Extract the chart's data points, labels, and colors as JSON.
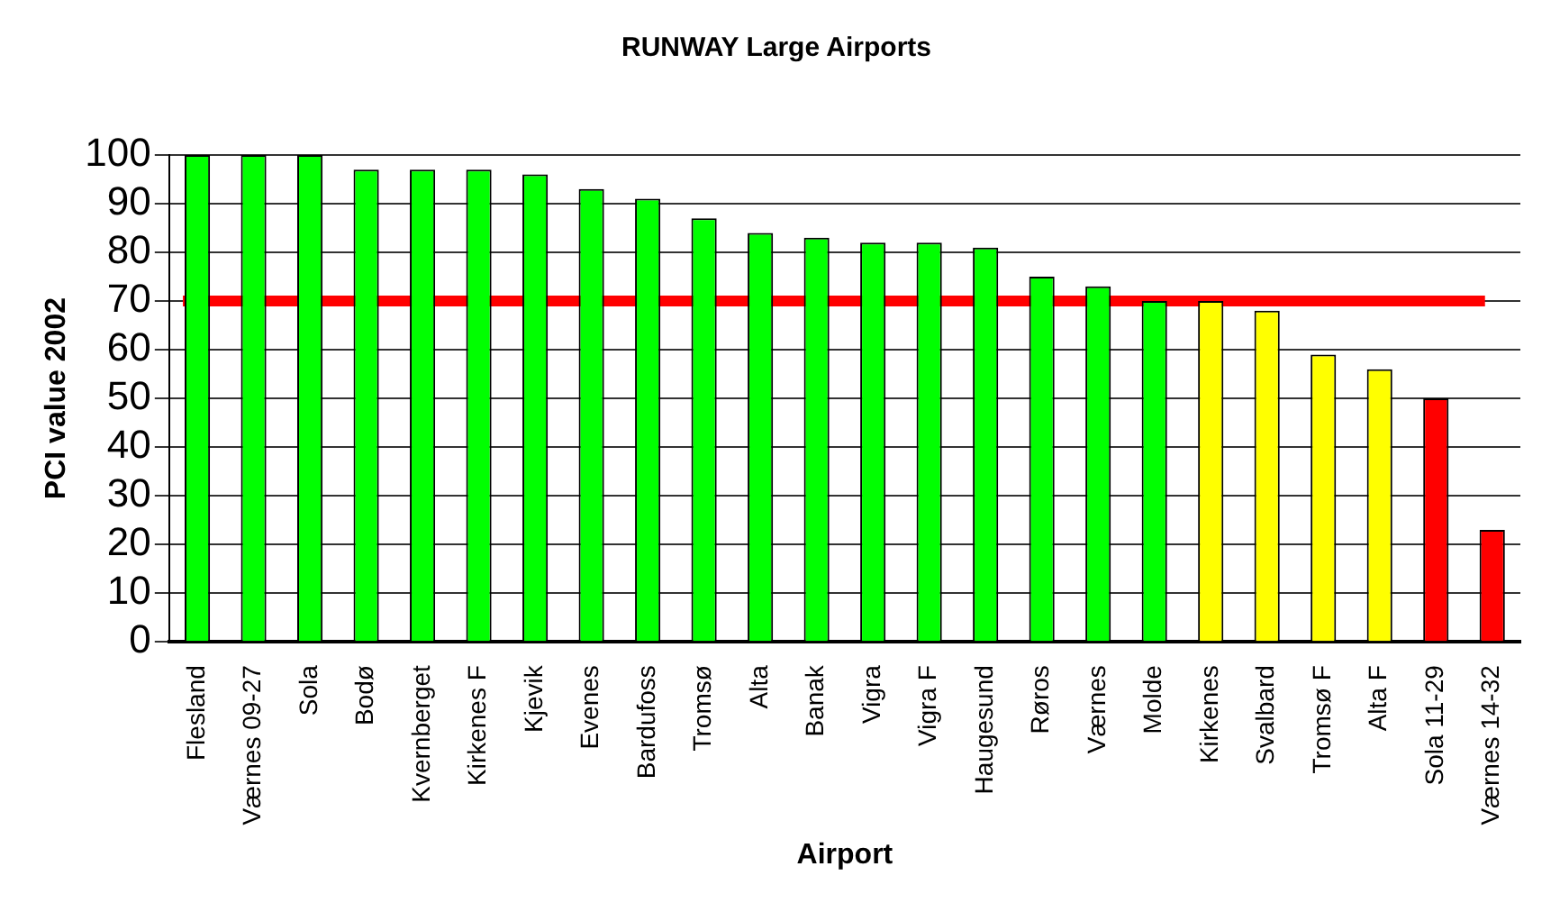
{
  "chart_data": {
    "type": "bar",
    "title": "RUNWAY Large Airports",
    "xlabel": "Airport",
    "ylabel": "PCI value 2002",
    "categories": [
      "Flesland",
      "Værnes 09-27",
      "Sola",
      "Bodø",
      "Kvernberget",
      "Kirkenes F",
      "Kjevik",
      "Evenes",
      "Bardufoss",
      "Tromsø",
      "Alta",
      "Banak",
      "Vigra",
      "Vigra F",
      "Haugesund",
      "Røros",
      "Værnes",
      "Molde",
      "Kirkenes",
      "Svalbard",
      "Tromsø F",
      "Alta F",
      "Sola 11-29",
      "Værnes 14-32"
    ],
    "values": [
      100,
      100,
      100,
      97,
      97,
      97,
      96,
      93,
      91,
      87,
      84,
      83,
      82,
      82,
      81,
      75,
      73,
      70,
      70,
      68,
      59,
      56,
      50,
      23
    ],
    "colors": [
      "#00ff00",
      "#00ff00",
      "#00ff00",
      "#00ff00",
      "#00ff00",
      "#00ff00",
      "#00ff00",
      "#00ff00",
      "#00ff00",
      "#00ff00",
      "#00ff00",
      "#00ff00",
      "#00ff00",
      "#00ff00",
      "#00ff00",
      "#00ff00",
      "#00ff00",
      "#00ff00",
      "#ffff00",
      "#ffff00",
      "#ffff00",
      "#ffff00",
      "#ff0000",
      "#ff0000"
    ],
    "ylim": [
      0,
      100
    ],
    "yticks": [
      0,
      10,
      20,
      30,
      40,
      50,
      60,
      70,
      80,
      90,
      100
    ],
    "grid": "y",
    "legend": false,
    "ref_lines": [
      {
        "axis": "y",
        "value": 70,
        "color": "#ff0000"
      }
    ]
  }
}
